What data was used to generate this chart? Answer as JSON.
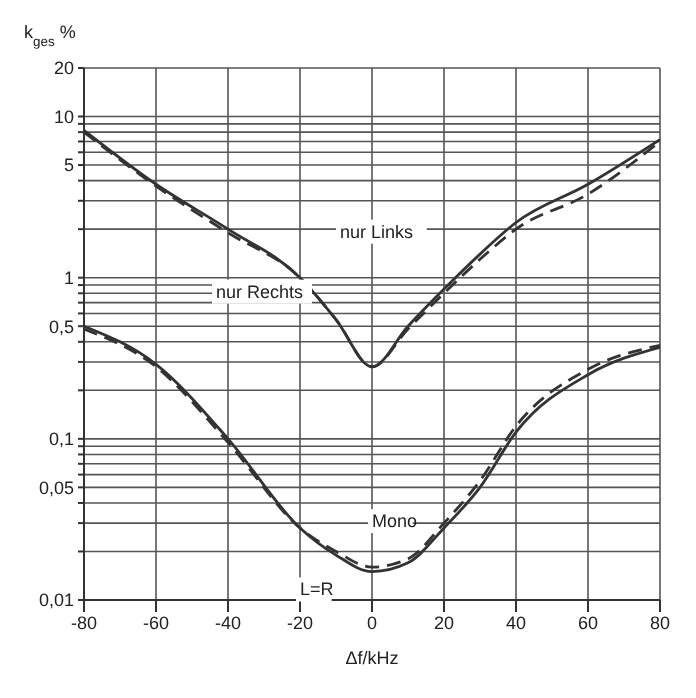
{
  "chart_data": {
    "type": "line",
    "xlabel": "Δf/kHz",
    "ylabel": "k$_{ges}$ %",
    "log": "y",
    "grid": true,
    "marker": "none",
    "legend": false,
    "xlim": [
      -80,
      80
    ],
    "xticks": [
      -80,
      -60,
      -40,
      -20,
      0,
      20,
      40,
      60,
      80
    ],
    "ylim": [
      0.01,
      20
    ],
    "yticks": [
      {
        "value": 0.01,
        "label": "0,01"
      },
      {
        "value": 0.02,
        "label": null
      },
      {
        "value": 0.03,
        "label": null
      },
      {
        "value": 0.04,
        "label": null
      },
      {
        "value": 0.05,
        "label": "0,05"
      },
      {
        "value": 0.06,
        "label": null
      },
      {
        "value": 0.07,
        "label": null
      },
      {
        "value": 0.08,
        "label": null
      },
      {
        "value": 0.09,
        "label": null
      },
      {
        "value": 0.1,
        "label": "0,1"
      },
      {
        "value": 0.2,
        "label": null
      },
      {
        "value": 0.3,
        "label": null
      },
      {
        "value": 0.4,
        "label": null
      },
      {
        "value": 0.5,
        "label": "0,5"
      },
      {
        "value": 0.6,
        "label": null
      },
      {
        "value": 0.7,
        "label": null
      },
      {
        "value": 0.8,
        "label": null
      },
      {
        "value": 0.9,
        "label": null
      },
      1,
      {
        "value": 2,
        "label": null
      },
      {
        "value": 3,
        "label": null
      },
      {
        "value": 4,
        "label": null
      },
      5,
      {
        "value": 6,
        "label": null
      },
      {
        "value": 7,
        "label": null
      },
      {
        "value": 8,
        "label": null
      },
      {
        "value": 9,
        "label": null
      },
      10,
      20
    ],
    "x": [
      -80,
      -60,
      -40,
      -20,
      -10,
      0,
      10,
      20,
      30,
      40,
      60,
      80
    ],
    "series": [
      {
        "name": "nur Links",
        "color": "#333333",
        "line_style": "solid",
        "values": [
          8.2,
          3.8,
          2.0,
          1.0,
          0.55,
          0.28,
          0.5,
          0.85,
          1.4,
          2.2,
          3.8,
          7.2
        ]
      },
      {
        "name": "nur Rechts",
        "color": "#333333",
        "line_style": "dashed",
        "values": [
          8.0,
          3.7,
          1.9,
          1.0,
          0.55,
          0.28,
          0.48,
          0.8,
          1.3,
          2.0,
          3.3,
          7.0
        ]
      },
      {
        "name": "Mono",
        "color": "#333333",
        "line_style": "solid",
        "values": [
          0.5,
          0.29,
          0.1,
          0.028,
          0.019,
          0.015,
          0.017,
          0.028,
          0.05,
          0.11,
          0.25,
          0.37
        ]
      },
      {
        "name": "L=R",
        "color": "#333333",
        "line_style": "dashed",
        "values": [
          0.48,
          0.28,
          0.095,
          0.028,
          0.02,
          0.016,
          0.018,
          0.03,
          0.055,
          0.12,
          0.27,
          0.38
        ]
      }
    ]
  }
}
